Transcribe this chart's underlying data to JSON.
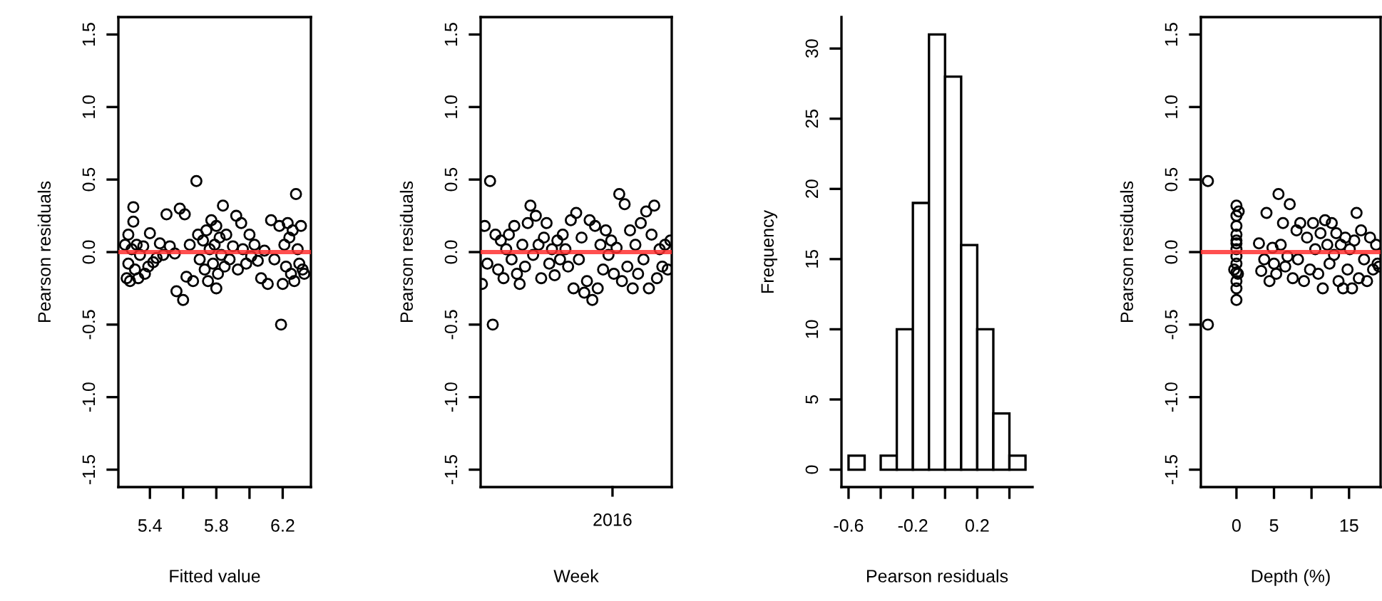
{
  "chart_data": [
    {
      "type": "scatter",
      "xlabel": "Fitted value",
      "ylabel": "Pearson residuals",
      "marker": "circle",
      "xlim": [
        5.21,
        6.37
      ],
      "xticks": [
        5.4,
        {
          "value": 5.6,
          "label": null
        },
        5.8,
        {
          "value": 6.0,
          "label": null
        },
        6.2
      ],
      "ylim": [
        -1.62,
        1.62
      ],
      "yticks": [
        {
          "value": -1.5,
          "label": "-1.5"
        },
        {
          "value": -1.0,
          "label": "-1.0"
        },
        {
          "value": -0.5,
          "label": "-0.5"
        },
        {
          "value": 0,
          "label": "0.0"
        },
        {
          "value": 0.5,
          "label": "0.5"
        },
        {
          "value": 1.0,
          "label": "1.0"
        },
        {
          "value": 1.5,
          "label": "1.5"
        }
      ],
      "ref_lines": [
        {
          "axis": "y",
          "value": 0,
          "label": null,
          "color": "#ff3030"
        }
      ],
      "series": [
        {
          "color": "#000000",
          "x": [
            5.25,
            5.26,
            5.27,
            5.27,
            5.28,
            5.29,
            5.3,
            5.3,
            5.31,
            5.32,
            5.33,
            5.34,
            5.36,
            5.37,
            5.39,
            5.4,
            5.42,
            5.44,
            5.46,
            5.48,
            5.5,
            5.52,
            5.55,
            5.56,
            5.58,
            5.6,
            5.61,
            5.62,
            5.64,
            5.66,
            5.68,
            5.69,
            5.7,
            5.72,
            5.73,
            5.74,
            5.75,
            5.76,
            5.77,
            5.78,
            5.79,
            5.8,
            5.8,
            5.81,
            5.82,
            5.83,
            5.84,
            5.85,
            5.86,
            5.88,
            5.9,
            5.92,
            5.93,
            5.95,
            5.96,
            5.98,
            6.0,
            6.01,
            6.03,
            6.05,
            6.07,
            6.09,
            6.11,
            6.13,
            6.15,
            6.18,
            6.19,
            6.2,
            6.21,
            6.22,
            6.23,
            6.24,
            6.25,
            6.26,
            6.27,
            6.28,
            6.29,
            6.3,
            6.31,
            6.32,
            6.33
          ],
          "values": [
            0.05,
            -0.18,
            0.12,
            -0.08,
            -0.2,
            0.02,
            0.21,
            0.31,
            -0.12,
            0.05,
            -0.18,
            -0.02,
            0.04,
            -0.15,
            -0.1,
            0.13,
            -0.07,
            -0.04,
            0.06,
            -0.02,
            0.26,
            0.04,
            -0.01,
            -0.27,
            0.3,
            -0.33,
            0.26,
            -0.17,
            0.05,
            -0.2,
            0.49,
            0.12,
            -0.05,
            0.08,
            -0.12,
            0.15,
            -0.2,
            0.02,
            0.22,
            -0.08,
            0.05,
            -0.25,
            0.18,
            -0.15,
            0.1,
            -0.02,
            0.32,
            -0.1,
            0.12,
            -0.05,
            0.04,
            0.25,
            -0.12,
            0.2,
            0.02,
            -0.08,
            0.12,
            -0.03,
            0.05,
            -0.06,
            -0.18,
            0.01,
            -0.22,
            0.22,
            -0.05,
            0.18,
            -0.5,
            -0.22,
            0.05,
            -0.1,
            0.2,
            0.1,
            -0.15,
            0.15,
            -0.2,
            0.4,
            0.02,
            -0.08,
            0.18,
            -0.12,
            -0.15
          ]
        }
      ]
    },
    {
      "type": "scatter",
      "xlabel": "Week",
      "ylabel": "Pearson residuals",
      "marker": "circle",
      "categories": [
        null,
        null,
        null,
        null,
        null,
        null,
        null,
        null,
        null,
        null,
        null,
        null,
        null,
        null,
        null,
        null,
        null,
        null,
        null,
        null,
        null,
        null,
        null,
        null,
        null,
        null,
        null,
        null,
        null,
        null,
        null,
        null,
        null,
        null,
        null,
        null,
        null,
        null,
        null,
        null,
        null,
        null,
        null,
        null,
        null,
        null,
        null,
        null,
        null,
        null,
        null,
        null,
        null,
        null,
        null,
        null,
        null,
        null,
        null,
        null,
        null,
        null,
        null,
        null,
        null,
        null,
        null,
        null,
        null,
        null,
        null
      ],
      "annotations": [
        "2016"
      ],
      "ylim": [
        -1.62,
        1.62
      ],
      "yticks": [
        {
          "value": -1.5,
          "label": "-1.5"
        },
        {
          "value": -1.0,
          "label": "-1.0"
        },
        {
          "value": -0.5,
          "label": "-0.5"
        },
        {
          "value": 0,
          "label": "0.0"
        },
        {
          "value": 0.5,
          "label": "0.5"
        },
        {
          "value": 1.0,
          "label": "1.0"
        },
        {
          "value": 1.5,
          "label": "1.5"
        }
      ],
      "ref_lines": [
        {
          "axis": "y",
          "value": 0,
          "label": null,
          "color": "#ff3030"
        }
      ],
      "series": [
        {
          "color": "#000000",
          "values": [
            -0.22,
            0.18,
            -0.08,
            0.49,
            -0.5,
            0.12,
            -0.12,
            0.08,
            -0.18,
            0.02,
            0.12,
            -0.05,
            0.18,
            -0.15,
            -0.22,
            0.05,
            -0.1,
            0.2,
            0.32,
            -0.02,
            0.25,
            0.05,
            -0.18,
            0.1,
            0.2,
            -0.08,
            0.02,
            -0.16,
            0.08,
            -0.05,
            0.12,
            0.02,
            -0.1,
            0.22,
            -0.25,
            0.27,
            -0.05,
            0.1,
            -0.28,
            -0.2,
            0.22,
            -0.33,
            0.18,
            -0.25,
            0.05,
            -0.12,
            0.15,
            -0.02,
            0.08,
            -0.15,
            0.03,
            0.4,
            -0.2,
            0.33,
            -0.1,
            0.15,
            -0.25,
            0.05,
            -0.15,
            0.2,
            -0.05,
            0.28,
            -0.25,
            0.12,
            0.32,
            -0.18,
            0.02,
            -0.1,
            0.05,
            -0.12,
            0.08
          ]
        }
      ]
    },
    {
      "type": "histogram",
      "xlabel": "Pearson residuals",
      "ylabel": "Frequency",
      "color": "#ffffff",
      "bins": [
        -0.6,
        -0.5,
        -0.4,
        -0.3,
        -0.2,
        -0.1,
        0.0,
        0.1,
        0.2,
        0.3,
        0.4,
        0.5
      ],
      "values": [
        1,
        0,
        1,
        10,
        19,
        31,
        28,
        16,
        10,
        4,
        1
      ],
      "xlim": [
        -0.644,
        0.544
      ],
      "xticks": [
        -0.6,
        {
          "value": -0.4,
          "label": null
        },
        -0.2,
        {
          "value": 0.0,
          "label": null
        },
        0.2,
        {
          "value": 0.4,
          "label": null
        }
      ],
      "ylim": [
        -1.24,
        32.24
      ],
      "yticks": [
        0,
        5,
        10,
        15,
        20,
        25,
        30
      ]
    },
    {
      "type": "scatter",
      "xlabel": "Depth (%)",
      "ylabel": "Pearson residuals",
      "marker": "circle",
      "xlim": [
        -4.74,
        19.2
      ],
      "xticks": [
        0,
        5,
        {
          "value": 10,
          "label": null
        },
        15
      ],
      "ylim": [
        -1.62,
        1.62
      ],
      "yticks": [
        {
          "value": -1.5,
          "label": "-1.5"
        },
        {
          "value": -1.0,
          "label": "-1.0"
        },
        {
          "value": -0.5,
          "label": "-0.5"
        },
        {
          "value": 0,
          "label": "0.0"
        },
        {
          "value": 0.5,
          "label": "0.5"
        },
        {
          "value": 1.0,
          "label": "1.0"
        },
        {
          "value": 1.5,
          "label": "1.5"
        }
      ],
      "ref_lines": [
        {
          "axis": "y",
          "value": 0,
          "label": null,
          "color": "#ff3030"
        }
      ],
      "series": [
        {
          "color": "#000000",
          "x": [
            -3.8,
            -3.8,
            -0.3,
            0,
            0,
            0,
            0,
            0,
            0,
            0,
            0,
            0,
            0,
            0,
            0,
            0,
            0.2,
            0.3,
            3.0,
            3.3,
            3.7,
            4.0,
            4.4,
            4.8,
            5.0,
            5.3,
            5.6,
            5.9,
            6.2,
            6.5,
            6.8,
            7.1,
            7.5,
            8.0,
            8.2,
            8.5,
            9.0,
            9.4,
            9.8,
            10.2,
            10.5,
            10.9,
            11.2,
            11.5,
            11.8,
            12.1,
            12.4,
            12.7,
            13.0,
            13.3,
            13.6,
            13.9,
            14.2,
            14.5,
            14.8,
            15.1,
            15.4,
            15.7,
            16.0,
            16.3,
            16.6,
            17.0,
            17.4,
            17.8,
            18.2,
            18.6,
            18.8,
            19.0
          ],
          "values": [
            0.49,
            -0.5,
            -0.12,
            0.32,
            0.25,
            0.18,
            0.12,
            0.06,
            0.02,
            -0.03,
            -0.08,
            -0.14,
            -0.2,
            -0.25,
            -0.33,
            0.08,
            -0.15,
            0.28,
            0.06,
            -0.13,
            -0.05,
            0.27,
            -0.2,
            0.03,
            -0.08,
            -0.15,
            0.4,
            0.05,
            0.2,
            -0.1,
            -0.03,
            0.33,
            -0.18,
            0.15,
            -0.05,
            0.2,
            -0.2,
            0.1,
            -0.12,
            0.2,
            0.02,
            -0.15,
            0.13,
            -0.25,
            0.22,
            0.05,
            -0.08,
            0.2,
            -0.02,
            0.13,
            -0.2,
            0.05,
            -0.25,
            0.1,
            -0.12,
            0.02,
            -0.25,
            0.08,
            0.27,
            -0.18,
            0.15,
            -0.05,
            -0.2,
            0.1,
            -0.12,
            0.05,
            -0.08,
            -0.1
          ]
        }
      ]
    }
  ]
}
